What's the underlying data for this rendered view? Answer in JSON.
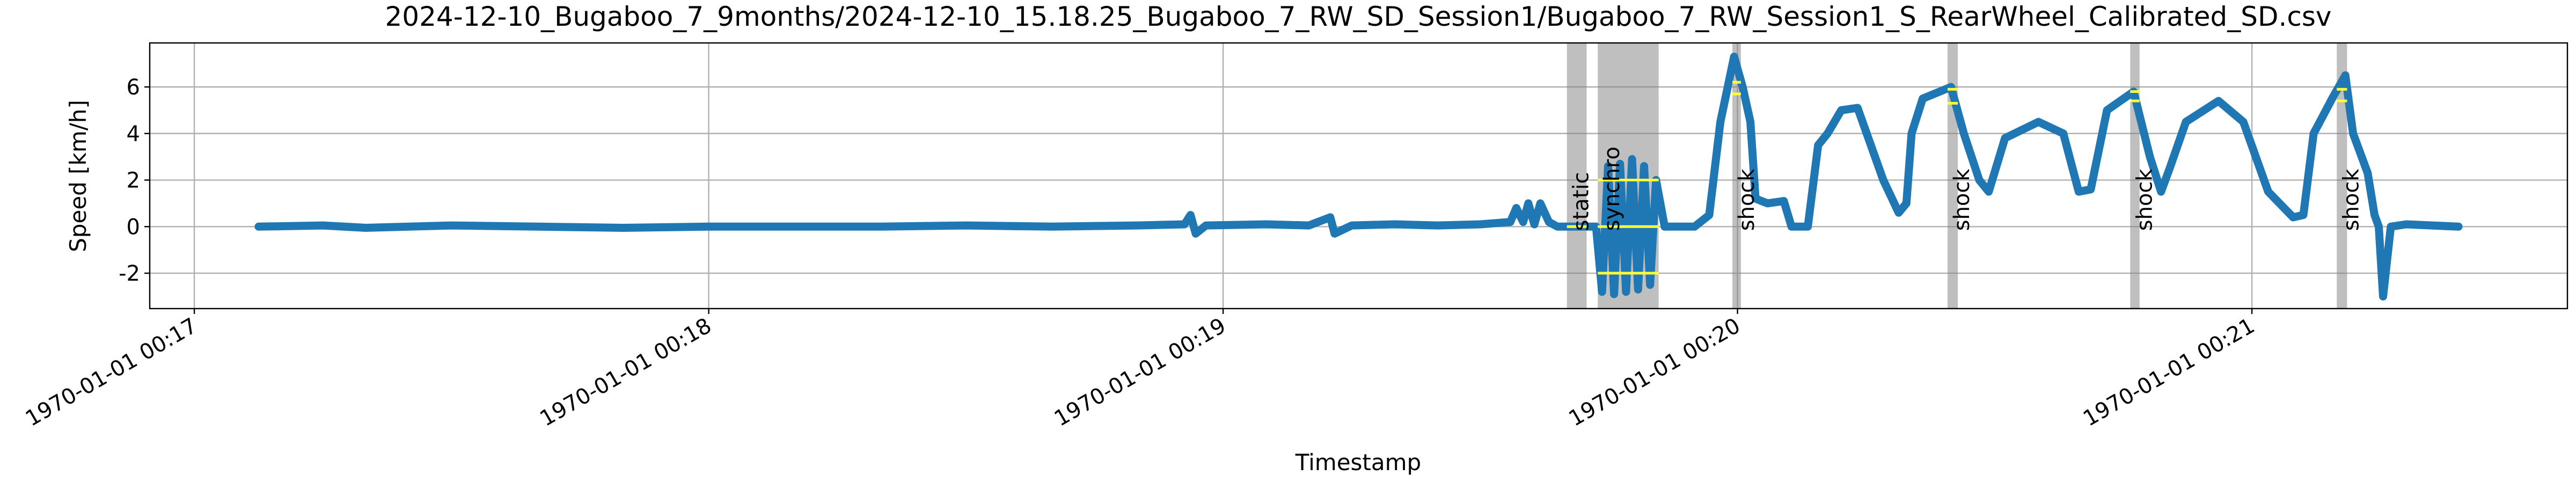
{
  "chart_data": {
    "type": "line",
    "title": "2024-12-10_Bugaboo_7_9months/2024-12-10_15.18.25_Bugaboo_7_RW_SD_Session1/Bugaboo_7_RW_Session1_S_RearWheel_Calibrated_SD.csv",
    "x_label": "Timestamp",
    "y_label": "Speed [km/h]",
    "xlim": [
      1014.8,
      1296.8
    ],
    "ylim": [
      -3.52,
      7.89
    ],
    "xticks": [
      {
        "value": 1020,
        "label": "1970-01-01 00:17"
      },
      {
        "value": 1080,
        "label": "1970-01-01 00:18"
      },
      {
        "value": 1140,
        "label": "1970-01-01 00:19"
      },
      {
        "value": 1200,
        "label": "1970-01-01 00:20"
      },
      {
        "value": 1260,
        "label": "1970-01-01 00:21"
      }
    ],
    "yticks": [
      -2,
      0,
      2,
      4,
      6
    ],
    "grid": true,
    "series": [
      {
        "color": "#1f77b4",
        "x": [
          1027.5,
          1035,
          1040,
          1050,
          1060,
          1070,
          1080,
          1090,
          1100,
          1110,
          1120,
          1130,
          1135.5,
          1136.2,
          1136.8,
          1138,
          1145,
          1150,
          1152.5,
          1153,
          1155,
          1160,
          1165,
          1170,
          1173.5,
          1174.2,
          1175,
          1175.6,
          1176.3,
          1177,
          1178,
          1179,
          1181,
          1183.5,
          1184.2,
          1184.9,
          1185.6,
          1186.3,
          1187,
          1187.7,
          1188.4,
          1189.1,
          1189.8,
          1190.5,
          1191.5,
          1195,
          1196.7,
          1198,
          1199.6,
          1200.6,
          1201.5,
          1202.1,
          1203.5,
          1205.4,
          1206.3,
          1208.2,
          1209.4,
          1210.5,
          1212.1,
          1214,
          1217,
          1218.8,
          1219.7,
          1220.3,
          1221.6,
          1224.9,
          1226.4,
          1228.2,
          1229.3,
          1231.2,
          1235.1,
          1238,
          1239.8,
          1241.2,
          1243.1,
          1246.2,
          1248.1,
          1249.4,
          1250.4,
          1252.3,
          1256.1,
          1259,
          1261.9,
          1264.8,
          1266,
          1267.2,
          1269.5,
          1270.9,
          1271.8,
          1273.5,
          1274.3,
          1274.8,
          1275.3,
          1276.2,
          1278,
          1284.1
        ],
        "values": [
          0,
          0.05,
          -0.05,
          0.05,
          0,
          -0.05,
          0,
          0,
          0,
          0.05,
          0,
          0.05,
          0.1,
          0.5,
          -0.3,
          0.05,
          0.1,
          0.05,
          0.4,
          -0.3,
          0.05,
          0.1,
          0.05,
          0.1,
          0.2,
          0.8,
          0.2,
          1.0,
          0.1,
          1.0,
          0.2,
          0,
          0,
          0,
          -2.8,
          2.6,
          -2.9,
          2.7,
          -2.8,
          2.9,
          -2.7,
          2.6,
          -2.5,
          2.0,
          0,
          0,
          0.5,
          4.5,
          7.3,
          6.0,
          4.5,
          1.2,
          1.0,
          1.1,
          0,
          0,
          3.5,
          4.0,
          5.0,
          5.1,
          2.0,
          0.6,
          1.0,
          4.0,
          5.5,
          6.0,
          4.0,
          2.0,
          1.5,
          3.8,
          4.5,
          4.0,
          1.5,
          1.6,
          5.0,
          5.8,
          3.0,
          1.5,
          2.5,
          4.5,
          5.4,
          4.5,
          1.5,
          0.4,
          0.5,
          4.0,
          5.6,
          6.5,
          4.0,
          2.3,
          0.5,
          0,
          -3.0,
          0,
          0.1,
          0
        ]
      }
    ],
    "annotations": [
      {
        "label": "static",
        "start": 1180.1,
        "end": 1182.4,
        "levels": [
          0
        ]
      },
      {
        "label": "synchro",
        "start": 1183.7,
        "end": 1190.8,
        "levels": [
          2,
          0,
          -2
        ]
      },
      {
        "label": "shock",
        "start": 1199.4,
        "end": 1200.4,
        "levels": [
          6.2,
          5.7
        ]
      },
      {
        "label": "shock",
        "start": 1224.5,
        "end": 1225.7,
        "levels": [
          5.9,
          5.3
        ]
      },
      {
        "label": "shock",
        "start": 1245.8,
        "end": 1246.9,
        "levels": [
          5.8,
          5.4
        ]
      },
      {
        "label": "shock",
        "start": 1269.9,
        "end": 1271.1,
        "levels": [
          5.9,
          5.4
        ]
      }
    ],
    "annotation_color": "#808080",
    "level_color": "#ffff33"
  }
}
